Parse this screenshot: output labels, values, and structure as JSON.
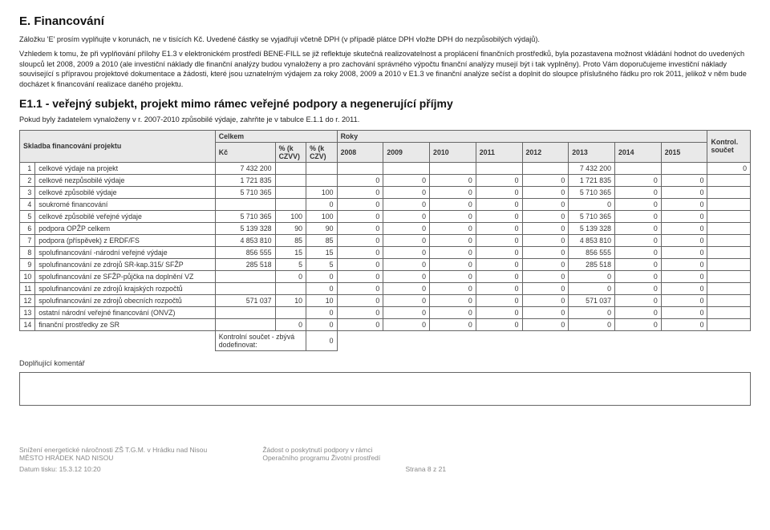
{
  "section_title": "E. Financování",
  "para1": "Záložku 'E' prosím vyplňujte v korunách, ne v tisících Kč. Uvedené částky se vyjadřují včetně DPH (v případě plátce DPH vložte DPH do nezpůsobilých výdajů).",
  "para2": "Vzhledem k tomu, že při vyplňování přílohy E1.3 v elektronickém prostředí BENE-FILL se již reflektuje skutečná realizovatelnost a proplácení finančních prostředků, byla pozastavena možnost vkládání hodnot do uvedených sloupců let 2008, 2009 a 2010 (ale investiční náklady dle finanční analýzy budou vynaloženy a pro zachování správného výpočtu finanční analýzy musejí být i tak vyplněny). Proto Vám doporučujeme investiční náklady související s přípravou projektové dokumentace a žádosti, které jsou uznatelným výdajem za roky 2008, 2009 a 2010 v E1.3 ve finanční analýze sečíst a doplnit do sloupce příslušného řádku pro rok 2011, jelikož v něm bude docházet k financování realizace daného projektu.",
  "sub_title": "E1.1 - veřejný subjekt, projekt mimo rámec veřejné podpory a negenerující příjmy",
  "note": "Pokud byly žadatelem vynaloženy v r. 2007-2010 způsobilé výdaje, zahrňte je v tabulce E.1.1 do r. 2011.",
  "table": {
    "header": {
      "skladba": "Skladba financování projektu",
      "celkem": "Celkem",
      "roky": "Roky",
      "kontrol": "Kontrol. součet",
      "kc": "Kč",
      "pk1": "% (k CZVV)",
      "pk2": "% (k CZV)",
      "years": [
        "2008",
        "2009",
        "2010",
        "2011",
        "2012",
        "2013",
        "2014",
        "2015"
      ]
    },
    "rows": [
      {
        "n": "1",
        "label": "celkové výdaje na projekt",
        "kc": "7 432 200",
        "p1": "",
        "p2": "",
        "y": [
          "",
          "",
          "",
          "",
          "",
          "7 432 200",
          "",
          ""
        ],
        "k": "0"
      },
      {
        "n": "2",
        "label": "celkové nezpůsobilé výdaje",
        "kc": "1 721 835",
        "p1": "",
        "p2": "",
        "y": [
          "0",
          "0",
          "0",
          "0",
          "0",
          "1 721 835",
          "0",
          "0"
        ],
        "k": ""
      },
      {
        "n": "3",
        "label": "celkové způsobilé výdaje",
        "kc": "5 710 365",
        "p1": "",
        "p2": "100",
        "y": [
          "0",
          "0",
          "0",
          "0",
          "0",
          "5 710 365",
          "0",
          "0"
        ],
        "k": ""
      },
      {
        "n": "4",
        "label": "soukromé financování",
        "kc": "",
        "p1": "",
        "p2": "0",
        "y": [
          "0",
          "0",
          "0",
          "0",
          "0",
          "0",
          "0",
          "0"
        ],
        "k": ""
      },
      {
        "n": "5",
        "label": "celkové způsobilé veřejné výdaje",
        "kc": "5 710 365",
        "p1": "100",
        "p2": "100",
        "y": [
          "0",
          "0",
          "0",
          "0",
          "0",
          "5 710 365",
          "0",
          "0"
        ],
        "k": ""
      },
      {
        "n": "6",
        "label": "podpora OPŽP celkem",
        "kc": "5 139 328",
        "p1": "90",
        "p2": "90",
        "y": [
          "0",
          "0",
          "0",
          "0",
          "0",
          "5 139 328",
          "0",
          "0"
        ],
        "k": ""
      },
      {
        "n": "7",
        "label": "podpora (příspěvek) z ERDF/FS",
        "kc": "4 853 810",
        "p1": "85",
        "p2": "85",
        "y": [
          "0",
          "0",
          "0",
          "0",
          "0",
          "4 853 810",
          "0",
          "0"
        ],
        "k": ""
      },
      {
        "n": "8",
        "label": "spolufinancování -národní veřejné výdaje",
        "kc": "856 555",
        "p1": "15",
        "p2": "15",
        "y": [
          "0",
          "0",
          "0",
          "0",
          "0",
          "856 555",
          "0",
          "0"
        ],
        "k": ""
      },
      {
        "n": "9",
        "label": "spolufinancování ze zdrojů SR-kap.315/ SFŽP",
        "kc": "285 518",
        "p1": "5",
        "p2": "5",
        "y": [
          "0",
          "0",
          "0",
          "0",
          "0",
          "285 518",
          "0",
          "0"
        ],
        "k": ""
      },
      {
        "n": "10",
        "label": "spolufinancování ze SFŽP-půjčka na doplnění VZ",
        "kc": "",
        "p1": "0",
        "p2": "0",
        "y": [
          "0",
          "0",
          "0",
          "0",
          "0",
          "0",
          "0",
          "0"
        ],
        "k": ""
      },
      {
        "n": "11",
        "label": "spolufinancování ze zdrojů krajských rozpočtů",
        "kc": "",
        "p1": "",
        "p2": "0",
        "y": [
          "0",
          "0",
          "0",
          "0",
          "0",
          "0",
          "0",
          "0"
        ],
        "k": ""
      },
      {
        "n": "12",
        "label": "spolufinancování ze zdrojů obecních rozpočtů",
        "kc": "571 037",
        "p1": "10",
        "p2": "10",
        "y": [
          "0",
          "0",
          "0",
          "0",
          "0",
          "571 037",
          "0",
          "0"
        ],
        "k": ""
      },
      {
        "n": "13",
        "label": "ostatní národní veřejné financování (ONVZ)",
        "kc": "",
        "p1": "",
        "p2": "0",
        "y": [
          "0",
          "0",
          "0",
          "0",
          "0",
          "0",
          "0",
          "0"
        ],
        "k": ""
      },
      {
        "n": "14",
        "label": "finanční prostředky ze SR",
        "kc": "",
        "p1": "0",
        "p2": "0",
        "y": [
          "0",
          "0",
          "0",
          "0",
          "0",
          "0",
          "0",
          "0"
        ],
        "k": ""
      }
    ],
    "footer_row": {
      "label": "Kontrolní součet - zbývá dodefinovat:",
      "val": "0"
    }
  },
  "comment_label": "Doplňující komentář",
  "footer": {
    "left1": "Snížení energetické náročnosti ZŠ T.G.M. v Hrádku nad Nisou",
    "left2": "MĚSTO HRÁDEK NAD NISOU",
    "mid1": "Žádost o poskytnutí podpory v rámci",
    "mid2": "Operačního programu Životní prostředí",
    "date": "Datum tisku: 15.3.12 10:20",
    "page": "Strana 8 z 21"
  }
}
